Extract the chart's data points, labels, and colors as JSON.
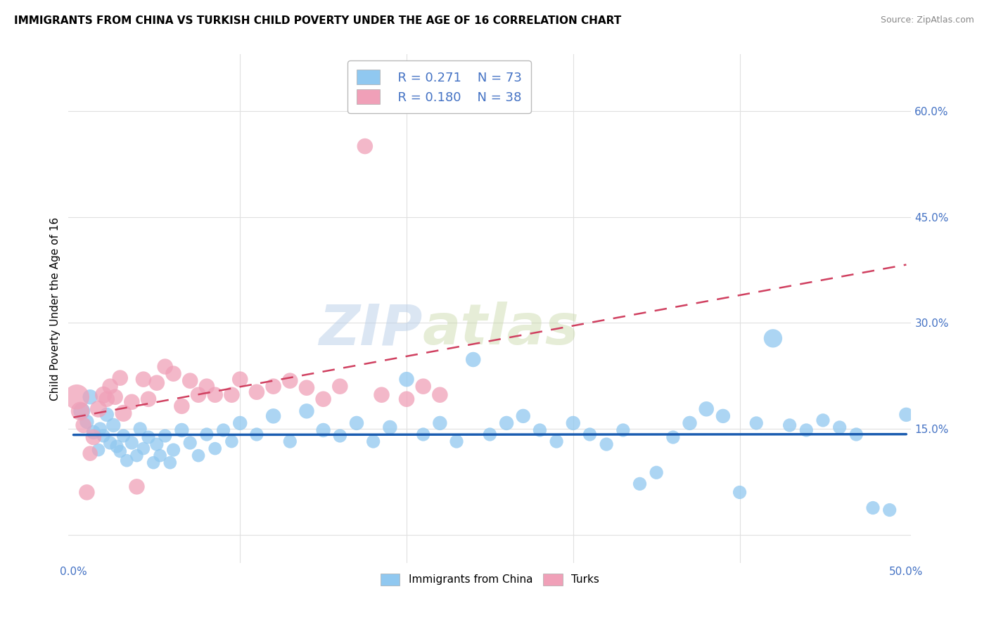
{
  "title": "IMMIGRANTS FROM CHINA VS TURKISH CHILD POVERTY UNDER THE AGE OF 16 CORRELATION CHART",
  "source": "Source: ZipAtlas.com",
  "ylabel": "Child Poverty Under the Age of 16",
  "yticks": [
    0.0,
    0.15,
    0.3,
    0.45,
    0.6
  ],
  "ytick_labels": [
    "",
    "15.0%",
    "30.0%",
    "45.0%",
    "60.0%"
  ],
  "xrange": [
    0.0,
    0.5
  ],
  "yrange": [
    -0.04,
    0.68
  ],
  "legend_r1": "R = 0.271",
  "legend_n1": "N = 73",
  "legend_r2": "R = 0.180",
  "legend_n2": "N = 38",
  "color_blue": "#90C8F0",
  "color_pink": "#F0A0B8",
  "color_blue_line": "#1A5CB0",
  "color_pink_line": "#D04060",
  "watermark_zip": "ZIP",
  "watermark_atlas": "atlas",
  "legend_label1": "Immigrants from China",
  "legend_label2": "Turks",
  "china_x": [
    0.005,
    0.008,
    0.01,
    0.012,
    0.015,
    0.016,
    0.018,
    0.02,
    0.022,
    0.024,
    0.026,
    0.028,
    0.03,
    0.032,
    0.035,
    0.038,
    0.04,
    0.042,
    0.045,
    0.048,
    0.05,
    0.052,
    0.055,
    0.058,
    0.06,
    0.065,
    0.07,
    0.075,
    0.08,
    0.085,
    0.09,
    0.095,
    0.1,
    0.11,
    0.12,
    0.13,
    0.14,
    0.15,
    0.16,
    0.17,
    0.18,
    0.19,
    0.2,
    0.21,
    0.22,
    0.23,
    0.24,
    0.25,
    0.26,
    0.27,
    0.28,
    0.29,
    0.3,
    0.31,
    0.32,
    0.33,
    0.34,
    0.35,
    0.36,
    0.37,
    0.38,
    0.39,
    0.4,
    0.41,
    0.42,
    0.43,
    0.44,
    0.45,
    0.46,
    0.47,
    0.48,
    0.49,
    0.5
  ],
  "china_y": [
    0.175,
    0.16,
    0.195,
    0.145,
    0.12,
    0.15,
    0.14,
    0.17,
    0.13,
    0.155,
    0.125,
    0.118,
    0.14,
    0.105,
    0.13,
    0.112,
    0.15,
    0.122,
    0.138,
    0.102,
    0.128,
    0.112,
    0.14,
    0.102,
    0.12,
    0.148,
    0.13,
    0.112,
    0.142,
    0.122,
    0.148,
    0.132,
    0.158,
    0.142,
    0.168,
    0.132,
    0.175,
    0.148,
    0.14,
    0.158,
    0.132,
    0.152,
    0.22,
    0.142,
    0.158,
    0.132,
    0.248,
    0.142,
    0.158,
    0.168,
    0.148,
    0.132,
    0.158,
    0.142,
    0.128,
    0.148,
    0.072,
    0.088,
    0.138,
    0.158,
    0.178,
    0.168,
    0.06,
    0.158,
    0.278,
    0.155,
    0.148,
    0.162,
    0.152,
    0.142,
    0.038,
    0.035,
    0.17
  ],
  "china_s": [
    25.0,
    18.0,
    20.0,
    18.0,
    15.0,
    16.0,
    16.0,
    18.0,
    16.0,
    18.0,
    16.0,
    15.0,
    16.0,
    15.0,
    16.0,
    15.0,
    16.0,
    15.0,
    16.0,
    15.0,
    16.0,
    15.0,
    16.0,
    15.0,
    16.0,
    18.0,
    16.0,
    15.0,
    16.0,
    15.0,
    16.0,
    15.0,
    18.0,
    16.0,
    20.0,
    16.0,
    20.0,
    18.0,
    16.0,
    18.0,
    16.0,
    18.0,
    20.0,
    16.0,
    18.0,
    16.0,
    20.0,
    16.0,
    18.0,
    18.0,
    16.0,
    16.0,
    18.0,
    16.0,
    16.0,
    16.0,
    16.0,
    16.0,
    16.0,
    18.0,
    20.0,
    18.0,
    16.0,
    16.0,
    30.0,
    16.0,
    16.0,
    16.0,
    16.0,
    16.0,
    16.0,
    16.0,
    18.0
  ],
  "turk_x": [
    0.002,
    0.004,
    0.006,
    0.008,
    0.01,
    0.012,
    0.015,
    0.018,
    0.02,
    0.022,
    0.025,
    0.028,
    0.03,
    0.035,
    0.038,
    0.042,
    0.045,
    0.05,
    0.055,
    0.06,
    0.065,
    0.07,
    0.075,
    0.08,
    0.085,
    0.095,
    0.1,
    0.11,
    0.12,
    0.13,
    0.14,
    0.15,
    0.16,
    0.175,
    0.185,
    0.2,
    0.21,
    0.22
  ],
  "turk_y": [
    0.195,
    0.175,
    0.155,
    0.06,
    0.115,
    0.138,
    0.178,
    0.198,
    0.192,
    0.21,
    0.195,
    0.222,
    0.172,
    0.188,
    0.068,
    0.22,
    0.192,
    0.215,
    0.238,
    0.228,
    0.182,
    0.218,
    0.198,
    0.21,
    0.198,
    0.198,
    0.22,
    0.202,
    0.21,
    0.218,
    0.208,
    0.192,
    0.21,
    0.55,
    0.198,
    0.192,
    0.21,
    0.198
  ],
  "turk_s": [
    55.0,
    30.0,
    22.0,
    22.0,
    20.0,
    22.0,
    25.0,
    25.0,
    22.0,
    22.0,
    22.0,
    22.0,
    25.0,
    22.0,
    22.0,
    22.0,
    22.0,
    22.0,
    22.0,
    22.0,
    22.0,
    22.0,
    22.0,
    22.0,
    22.0,
    22.0,
    22.0,
    22.0,
    22.0,
    22.0,
    22.0,
    22.0,
    22.0,
    22.0,
    22.0,
    22.0,
    22.0,
    22.0
  ],
  "background_color": "#ffffff",
  "grid_color": "#e0e0e0"
}
